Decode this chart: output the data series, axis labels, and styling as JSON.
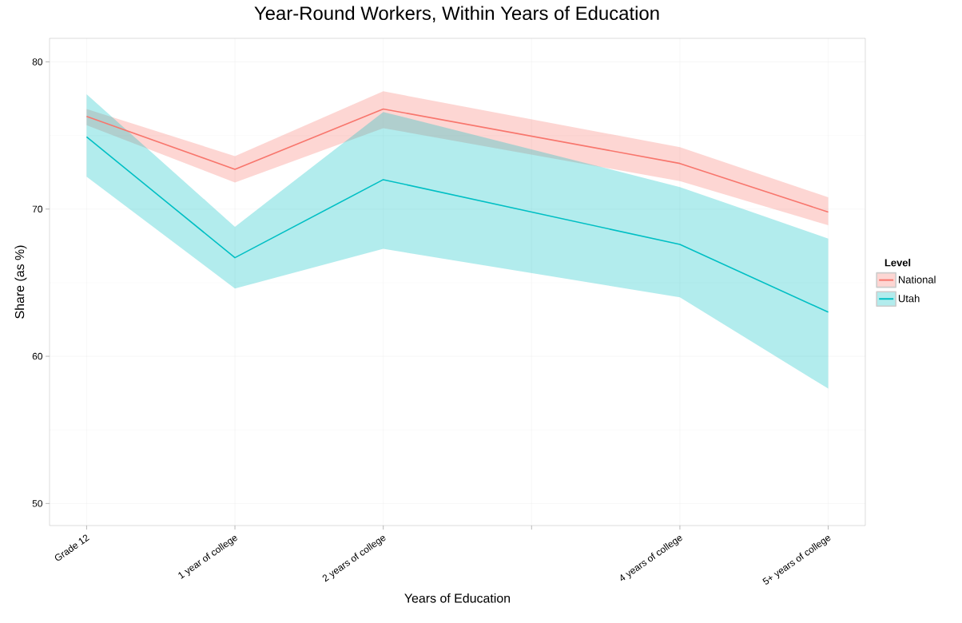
{
  "chart_data": {
    "type": "line",
    "title": "Year-Round Workers, Within Years of Education",
    "xlabel": "Years of Education",
    "ylabel": "Share (as %)",
    "legend_title": "Level",
    "categories": [
      "Grade 12",
      "1 year of college",
      "2 years of college",
      null,
      "4 years of college",
      "5+ years of college"
    ],
    "series": [
      {
        "name": "National",
        "color": "#f8766d",
        "values": [
          76.3,
          72.7,
          76.8,
          null,
          73.1,
          69.8
        ],
        "lower": [
          75.7,
          71.8,
          75.5,
          null,
          71.9,
          68.9
        ],
        "upper": [
          76.8,
          73.6,
          78.0,
          null,
          74.2,
          70.8
        ]
      },
      {
        "name": "Utah",
        "color": "#00bfc4",
        "values": [
          74.9,
          66.7,
          72.0,
          null,
          67.6,
          63.0
        ],
        "lower": [
          72.2,
          64.6,
          67.3,
          null,
          64.0,
          57.8
        ],
        "upper": [
          77.8,
          68.8,
          76.6,
          null,
          71.5,
          68.0
        ]
      }
    ],
    "ylim": [
      48.5,
      81.6
    ],
    "yticks": [
      50,
      60,
      70,
      80
    ],
    "grid": true,
    "legend": "right"
  }
}
